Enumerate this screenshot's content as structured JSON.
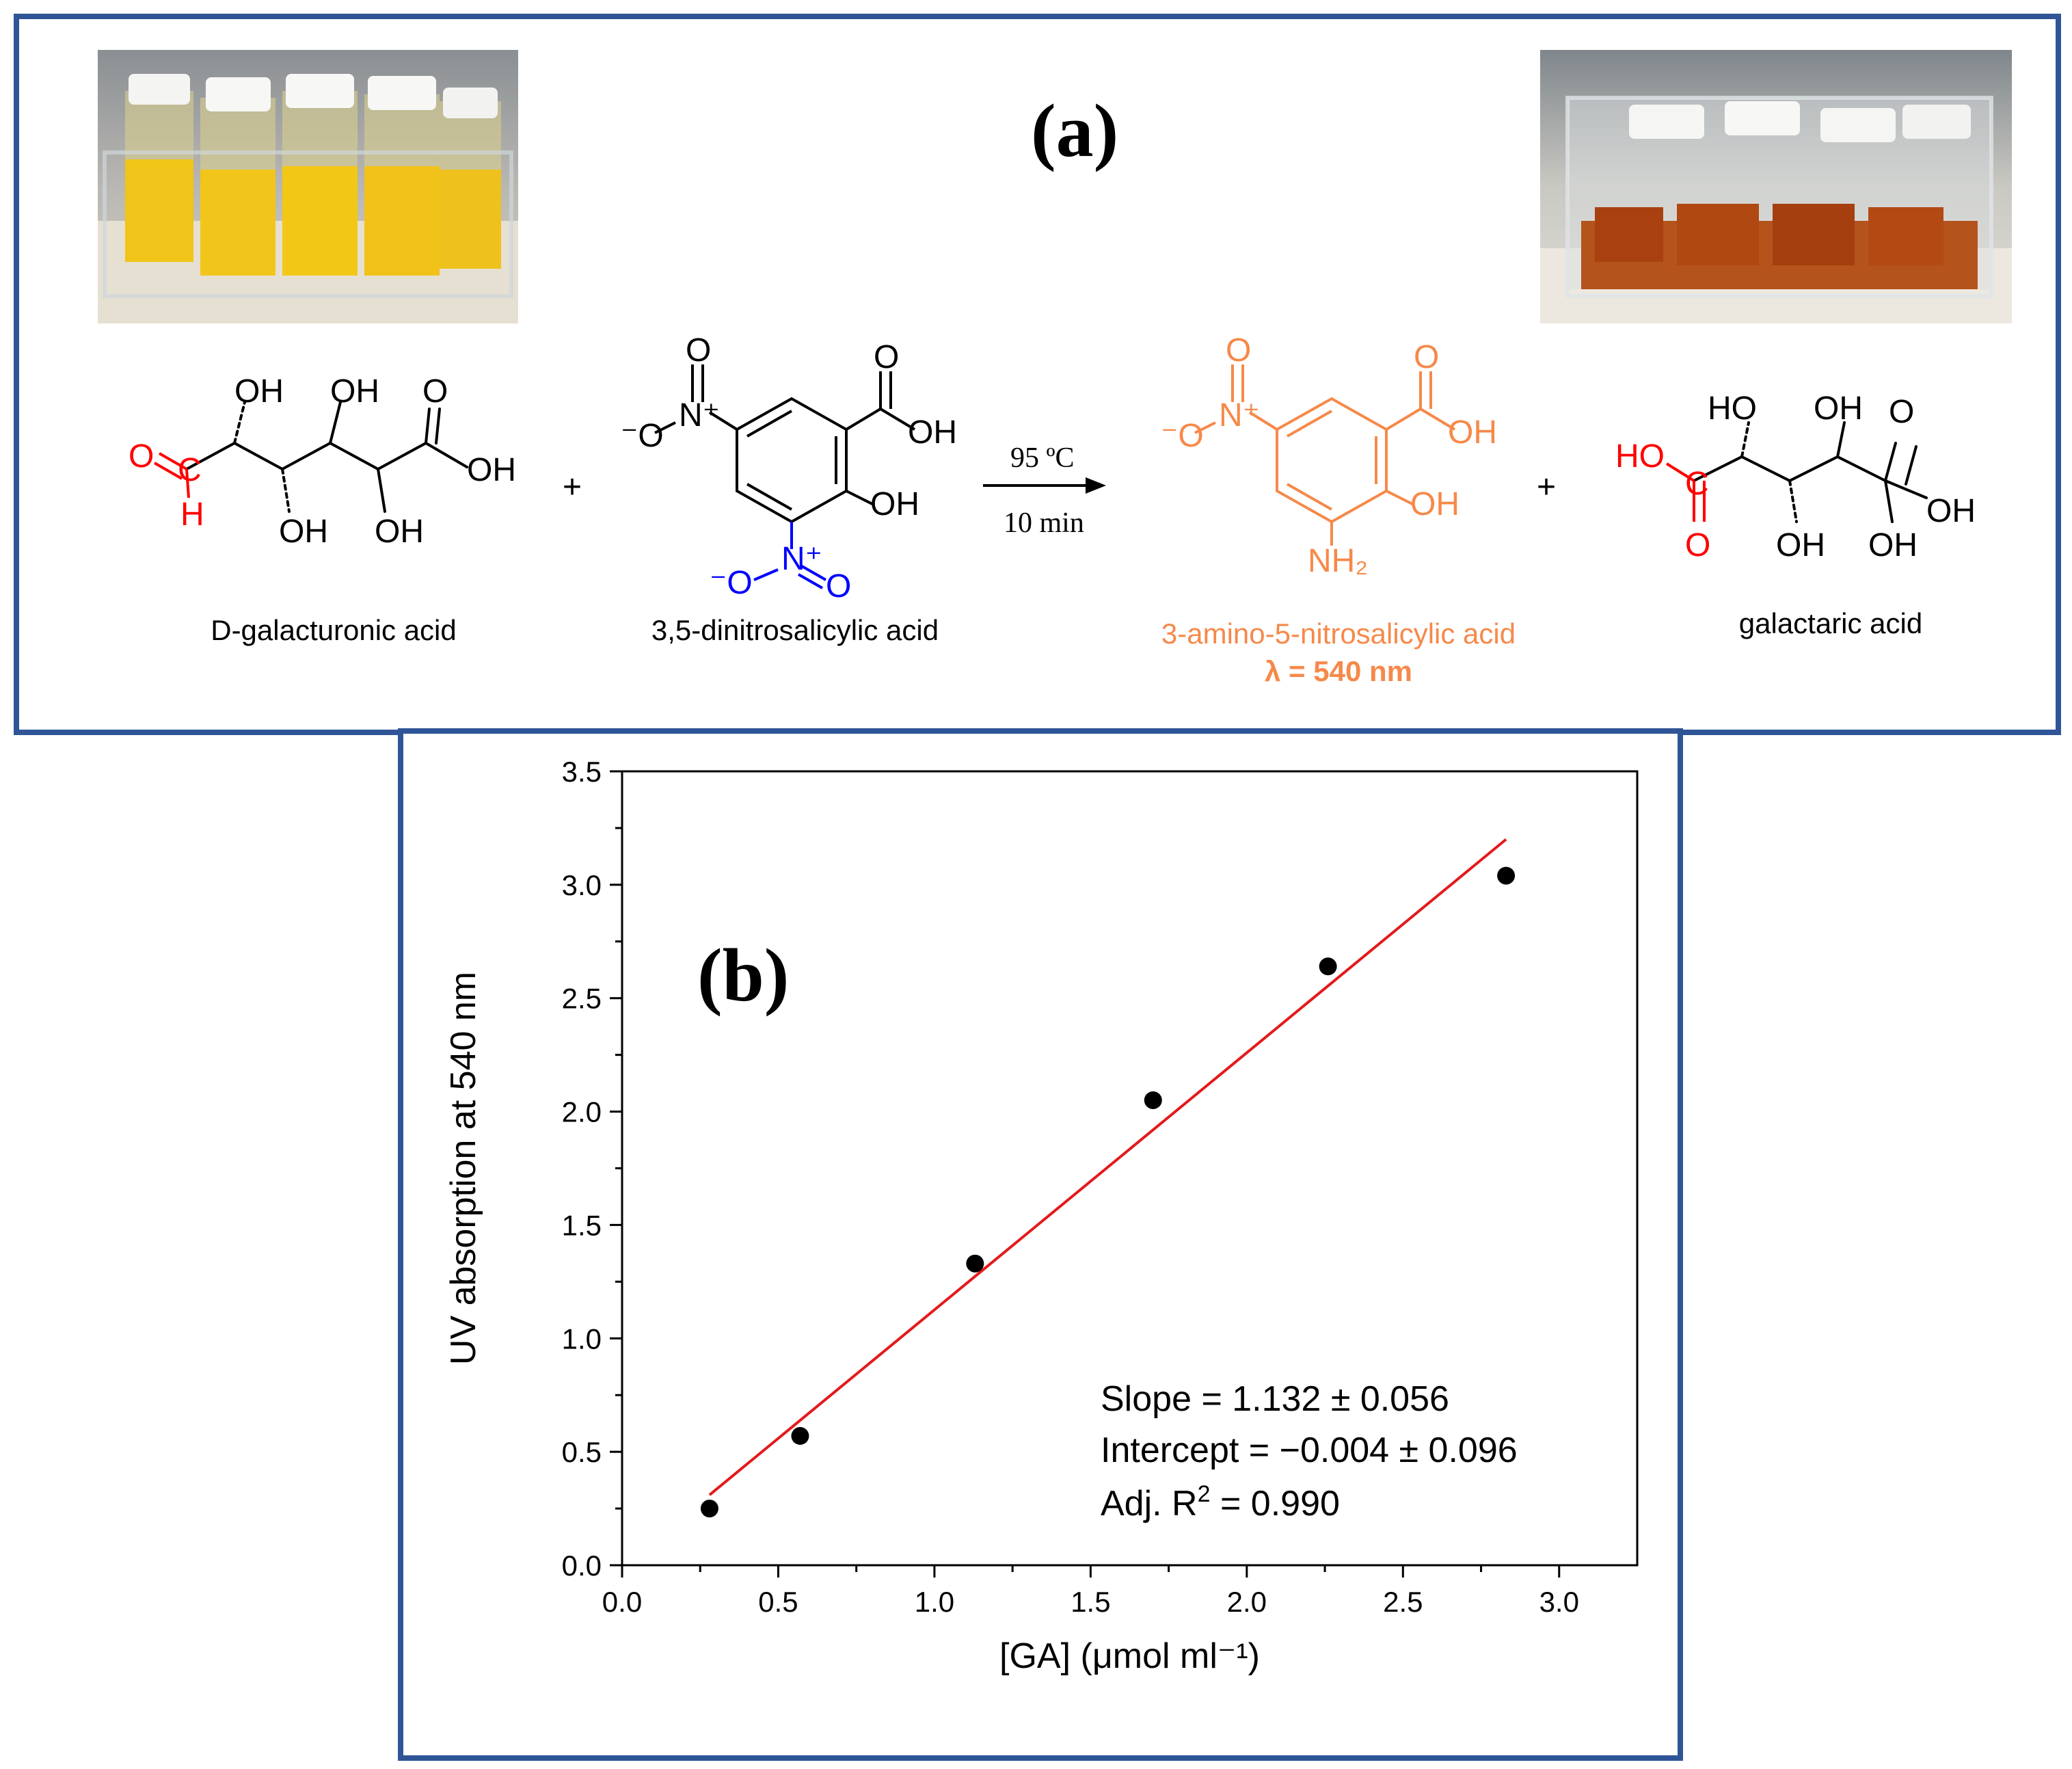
{
  "panel_a": {
    "label": "(a)",
    "reactant1": {
      "name": "D-galacturonic acid"
    },
    "plus1": "+",
    "reactant2": {
      "name": "3,5-dinitrosalicylic acid"
    },
    "conditions": {
      "temperature": "95 ºC",
      "time": "10 min"
    },
    "product1": {
      "name": "3-amino-5-nitrosalicylic acid",
      "wavelength": "λ = 540 nm"
    },
    "plus2": "+",
    "product2": {
      "name": "galactaric acid"
    },
    "atoms": {
      "oh": "OH",
      "ho": "HO",
      "o": "O",
      "h": "H",
      "c": "C",
      "n_plus": "N⁺",
      "o_minus": "⁻O",
      "nh2": "NH₂"
    }
  },
  "panel_b": {
    "label": "(b)",
    "fit": {
      "slope": "Slope = 1.132 ± 0.056",
      "intercept": "Intercept = −0.004 ± 0.096",
      "r2_prefix": "Adj. R",
      "r2_sup": "2",
      "r2_suffix": " = 0.990"
    }
  },
  "colors": {
    "border": "#2f5597",
    "red": "#ff0000",
    "blue": "#0000ff",
    "orange": "#f6894a",
    "fit_line": "#e31a1c"
  },
  "chart_data": {
    "type": "scatter",
    "xlabel": "[GA] (μmol ml⁻¹)",
    "ylabel": "UV absorption at 540 nm",
    "xlim": [
      0.0,
      3.25
    ],
    "ylim": [
      0.0,
      3.5
    ],
    "x_ticks": [
      "0.0",
      "0.5",
      "1.0",
      "1.5",
      "2.0",
      "2.5",
      "3.0"
    ],
    "y_ticks": [
      "0.0",
      "0.5",
      "1.0",
      "1.5",
      "2.0",
      "2.5",
      "3.0",
      "3.5"
    ],
    "grid": false,
    "series": [
      {
        "type": "scatter",
        "x": [
          0.28,
          0.57,
          1.13,
          1.7,
          2.26,
          2.83
        ],
        "y": [
          0.25,
          0.57,
          1.33,
          2.05,
          2.64,
          3.04
        ]
      },
      {
        "type": "line",
        "x": [
          0.28,
          2.83
        ],
        "y": [
          0.31,
          3.2
        ]
      }
    ]
  }
}
